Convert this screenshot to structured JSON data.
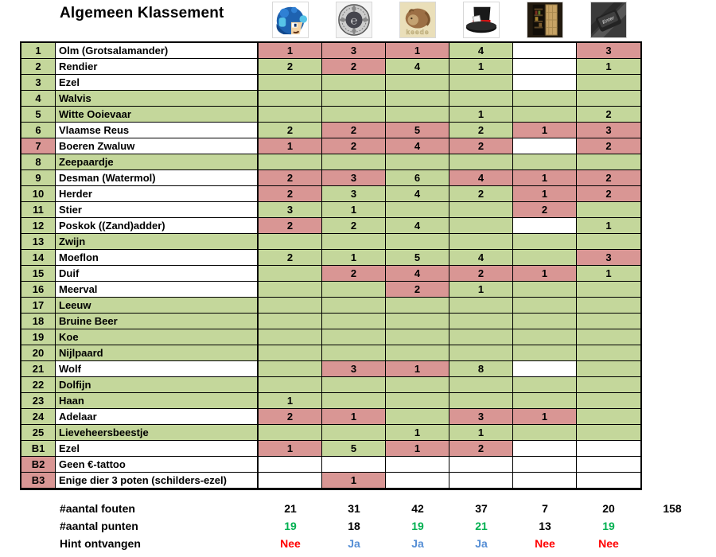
{
  "title": "Algemeen Klassement",
  "avatars": [
    {
      "name": "megaman-avatar"
    },
    {
      "name": "emblem-avatar"
    },
    {
      "name": "dormouse-avatar",
      "caption": "keede"
    },
    {
      "name": "tophat-avatar"
    },
    {
      "name": "fridge-avatar"
    },
    {
      "name": "keyboard-key-avatar",
      "caption": "Enter"
    }
  ],
  "colors": {
    "cell_green": "#c4d79b",
    "cell_pink": "#d99694",
    "cell_white": "#ffffff",
    "points_green": "#00b050",
    "hint_blue": "#558ed5",
    "hint_red": "#ff0000",
    "text_black": "#000000"
  },
  "rows": [
    {
      "num": "1",
      "num_bg": "green",
      "name": "Olm (Grotsalamander)",
      "name_bg": "white",
      "cells": [
        [
          "1",
          "pink"
        ],
        [
          "3",
          "pink"
        ],
        [
          "1",
          "pink"
        ],
        [
          "4",
          "green"
        ],
        [
          "",
          "white"
        ],
        [
          "3",
          "pink"
        ]
      ]
    },
    {
      "num": "2",
      "num_bg": "green",
      "name": "Rendier",
      "name_bg": "white",
      "cells": [
        [
          "2",
          "green"
        ],
        [
          "2",
          "pink"
        ],
        [
          "4",
          "green"
        ],
        [
          "1",
          "green"
        ],
        [
          "",
          "white"
        ],
        [
          "1",
          "green"
        ]
      ]
    },
    {
      "num": "3",
      "num_bg": "green",
      "name": "Ezel",
      "name_bg": "white",
      "cells": [
        [
          "",
          "green"
        ],
        [
          "",
          "green"
        ],
        [
          "",
          "green"
        ],
        [
          "",
          "green"
        ],
        [
          "",
          "white"
        ],
        [
          "",
          "green"
        ]
      ]
    },
    {
      "num": "4",
      "num_bg": "green",
      "name": "Walvis",
      "name_bg": "green",
      "cells": [
        [
          "",
          "green"
        ],
        [
          "",
          "green"
        ],
        [
          "",
          "green"
        ],
        [
          "",
          "green"
        ],
        [
          "",
          "green"
        ],
        [
          "",
          "green"
        ]
      ]
    },
    {
      "num": "5",
      "num_bg": "green",
      "name": "Witte Ooievaar",
      "name_bg": "green",
      "cells": [
        [
          "",
          "green"
        ],
        [
          "",
          "green"
        ],
        [
          "",
          "green"
        ],
        [
          "1",
          "green"
        ],
        [
          "",
          "green"
        ],
        [
          "2",
          "green"
        ]
      ]
    },
    {
      "num": "6",
      "num_bg": "green",
      "name": "Vlaamse Reus",
      "name_bg": "white",
      "cells": [
        [
          "2",
          "green"
        ],
        [
          "2",
          "pink"
        ],
        [
          "5",
          "pink"
        ],
        [
          "2",
          "green"
        ],
        [
          "1",
          "pink"
        ],
        [
          "3",
          "pink"
        ]
      ]
    },
    {
      "num": "7",
      "num_bg": "pink",
      "name": "Boeren Zwaluw",
      "name_bg": "white",
      "cells": [
        [
          "1",
          "pink"
        ],
        [
          "2",
          "pink"
        ],
        [
          "4",
          "pink"
        ],
        [
          "2",
          "pink"
        ],
        [
          "",
          "white"
        ],
        [
          "2",
          "pink"
        ]
      ]
    },
    {
      "num": "8",
      "num_bg": "green",
      "name": "Zeepaardje",
      "name_bg": "green",
      "cells": [
        [
          "",
          "green"
        ],
        [
          "",
          "green"
        ],
        [
          "",
          "green"
        ],
        [
          "",
          "green"
        ],
        [
          "",
          "green"
        ],
        [
          "",
          "green"
        ]
      ]
    },
    {
      "num": "9",
      "num_bg": "green",
      "name": "Desman (Watermol)",
      "name_bg": "white",
      "cells": [
        [
          "2",
          "pink"
        ],
        [
          "3",
          "pink"
        ],
        [
          "6",
          "green"
        ],
        [
          "4",
          "pink"
        ],
        [
          "1",
          "pink"
        ],
        [
          "2",
          "pink"
        ]
      ]
    },
    {
      "num": "10",
      "num_bg": "green",
      "name": "Herder",
      "name_bg": "white",
      "cells": [
        [
          "2",
          "pink"
        ],
        [
          "3",
          "green"
        ],
        [
          "4",
          "green"
        ],
        [
          "2",
          "green"
        ],
        [
          "1",
          "pink"
        ],
        [
          "2",
          "pink"
        ]
      ]
    },
    {
      "num": "11",
      "num_bg": "green",
      "name": "Stier",
      "name_bg": "white",
      "cells": [
        [
          "3",
          "green"
        ],
        [
          "1",
          "green"
        ],
        [
          "",
          "green"
        ],
        [
          "",
          "green"
        ],
        [
          "2",
          "pink"
        ],
        [
          "",
          "green"
        ]
      ]
    },
    {
      "num": "12",
      "num_bg": "green",
      "name": "Poskok ((Zand)adder)",
      "name_bg": "white",
      "cells": [
        [
          "2",
          "pink"
        ],
        [
          "2",
          "green"
        ],
        [
          "4",
          "green"
        ],
        [
          "",
          "green"
        ],
        [
          "",
          "white"
        ],
        [
          "1",
          "green"
        ]
      ]
    },
    {
      "num": "13",
      "num_bg": "green",
      "name": "Zwijn",
      "name_bg": "green",
      "cells": [
        [
          "",
          "green"
        ],
        [
          "",
          "green"
        ],
        [
          "",
          "green"
        ],
        [
          "",
          "green"
        ],
        [
          "",
          "green"
        ],
        [
          "",
          "green"
        ]
      ]
    },
    {
      "num": "14",
      "num_bg": "green",
      "name": "Moeflon",
      "name_bg": "white",
      "cells": [
        [
          "2",
          "green"
        ],
        [
          "1",
          "green"
        ],
        [
          "5",
          "green"
        ],
        [
          "4",
          "green"
        ],
        [
          "",
          "green"
        ],
        [
          "3",
          "pink"
        ]
      ]
    },
    {
      "num": "15",
      "num_bg": "green",
      "name": "Duif",
      "name_bg": "white",
      "cells": [
        [
          "",
          "green"
        ],
        [
          "2",
          "pink"
        ],
        [
          "4",
          "pink"
        ],
        [
          "2",
          "pink"
        ],
        [
          "1",
          "pink"
        ],
        [
          "1",
          "green"
        ]
      ]
    },
    {
      "num": "16",
      "num_bg": "green",
      "name": "Meerval",
      "name_bg": "white",
      "cells": [
        [
          "",
          "green"
        ],
        [
          "",
          "green"
        ],
        [
          "2",
          "pink"
        ],
        [
          "1",
          "green"
        ],
        [
          "",
          "green"
        ],
        [
          "",
          "green"
        ]
      ]
    },
    {
      "num": "17",
      "num_bg": "green",
      "name": "Leeuw",
      "name_bg": "green",
      "cells": [
        [
          "",
          "green"
        ],
        [
          "",
          "green"
        ],
        [
          "",
          "green"
        ],
        [
          "",
          "green"
        ],
        [
          "",
          "green"
        ],
        [
          "",
          "green"
        ]
      ]
    },
    {
      "num": "18",
      "num_bg": "green",
      "name": "Bruine Beer",
      "name_bg": "green",
      "cells": [
        [
          "",
          "green"
        ],
        [
          "",
          "green"
        ],
        [
          "",
          "green"
        ],
        [
          "",
          "green"
        ],
        [
          "",
          "green"
        ],
        [
          "",
          "green"
        ]
      ]
    },
    {
      "num": "19",
      "num_bg": "green",
      "name": "Koe",
      "name_bg": "green",
      "cells": [
        [
          "",
          "green"
        ],
        [
          "",
          "green"
        ],
        [
          "",
          "green"
        ],
        [
          "",
          "green"
        ],
        [
          "",
          "green"
        ],
        [
          "",
          "green"
        ]
      ]
    },
    {
      "num": "20",
      "num_bg": "green",
      "name": "Nijlpaard",
      "name_bg": "green",
      "cells": [
        [
          "",
          "green"
        ],
        [
          "",
          "green"
        ],
        [
          "",
          "green"
        ],
        [
          "",
          "green"
        ],
        [
          "",
          "green"
        ],
        [
          "",
          "green"
        ]
      ]
    },
    {
      "num": "21",
      "num_bg": "green",
      "name": "Wolf",
      "name_bg": "white",
      "cells": [
        [
          "",
          "green"
        ],
        [
          "3",
          "pink"
        ],
        [
          "1",
          "pink"
        ],
        [
          "8",
          "green"
        ],
        [
          "",
          "white"
        ],
        [
          "",
          "green"
        ]
      ]
    },
    {
      "num": "22",
      "num_bg": "green",
      "name": "Dolfijn",
      "name_bg": "green",
      "cells": [
        [
          "",
          "green"
        ],
        [
          "",
          "green"
        ],
        [
          "",
          "green"
        ],
        [
          "",
          "green"
        ],
        [
          "",
          "green"
        ],
        [
          "",
          "green"
        ]
      ]
    },
    {
      "num": "23",
      "num_bg": "green",
      "name": "Haan",
      "name_bg": "green",
      "cells": [
        [
          "1",
          "green"
        ],
        [
          "",
          "green"
        ],
        [
          "",
          "green"
        ],
        [
          "",
          "green"
        ],
        [
          "",
          "green"
        ],
        [
          "",
          "green"
        ]
      ]
    },
    {
      "num": "24",
      "num_bg": "green",
      "name": "Adelaar",
      "name_bg": "white",
      "cells": [
        [
          "2",
          "pink"
        ],
        [
          "1",
          "pink"
        ],
        [
          "",
          "green"
        ],
        [
          "3",
          "pink"
        ],
        [
          "1",
          "pink"
        ],
        [
          "",
          "green"
        ]
      ]
    },
    {
      "num": "25",
      "num_bg": "green",
      "name": "Lieveheersbeestje",
      "name_bg": "green",
      "cells": [
        [
          "",
          "green"
        ],
        [
          "",
          "green"
        ],
        [
          "1",
          "green"
        ],
        [
          "1",
          "green"
        ],
        [
          "",
          "green"
        ],
        [
          "",
          "green"
        ]
      ]
    },
    {
      "num": "B1",
      "num_bg": "green",
      "name": "Ezel",
      "name_bg": "white",
      "cells": [
        [
          "1",
          "pink"
        ],
        [
          "5",
          "green"
        ],
        [
          "1",
          "pink"
        ],
        [
          "2",
          "pink"
        ],
        [
          "",
          "white"
        ],
        [
          "",
          "white"
        ]
      ]
    },
    {
      "num": "B2",
      "num_bg": "pink",
      "name": "Geen €-tattoo",
      "name_bg": "white",
      "cells": [
        [
          "",
          "white"
        ],
        [
          "",
          "white"
        ],
        [
          "",
          "white"
        ],
        [
          "",
          "white"
        ],
        [
          "",
          "white"
        ],
        [
          "",
          "white"
        ]
      ]
    },
    {
      "num": "B3",
      "num_bg": "pink",
      "name": "Enige dier 3 poten (schilders-ezel)",
      "name_bg": "white",
      "cells": [
        [
          "",
          "white"
        ],
        [
          "1",
          "pink"
        ],
        [
          "",
          "white"
        ],
        [
          "",
          "white"
        ],
        [
          "",
          "white"
        ],
        [
          "",
          "white"
        ]
      ]
    }
  ],
  "footer": {
    "rows": [
      {
        "label": "#aantal fouten",
        "values": [
          "21",
          "31",
          "42",
          "37",
          "7",
          "20"
        ],
        "value_colors": [
          "black",
          "black",
          "black",
          "black",
          "black",
          "black"
        ],
        "total": "158"
      },
      {
        "label": "#aantal punten",
        "values": [
          "19",
          "18",
          "19",
          "21",
          "13",
          "19"
        ],
        "value_colors": [
          "green",
          "black",
          "green",
          "green",
          "black",
          "green"
        ],
        "total": ""
      },
      {
        "label": "Hint ontvangen",
        "values": [
          "Nee",
          "Ja",
          "Ja",
          "Ja",
          "Nee",
          "Nee"
        ],
        "value_colors": [
          "red",
          "blue",
          "blue",
          "blue",
          "red",
          "red"
        ],
        "total": ""
      }
    ]
  }
}
